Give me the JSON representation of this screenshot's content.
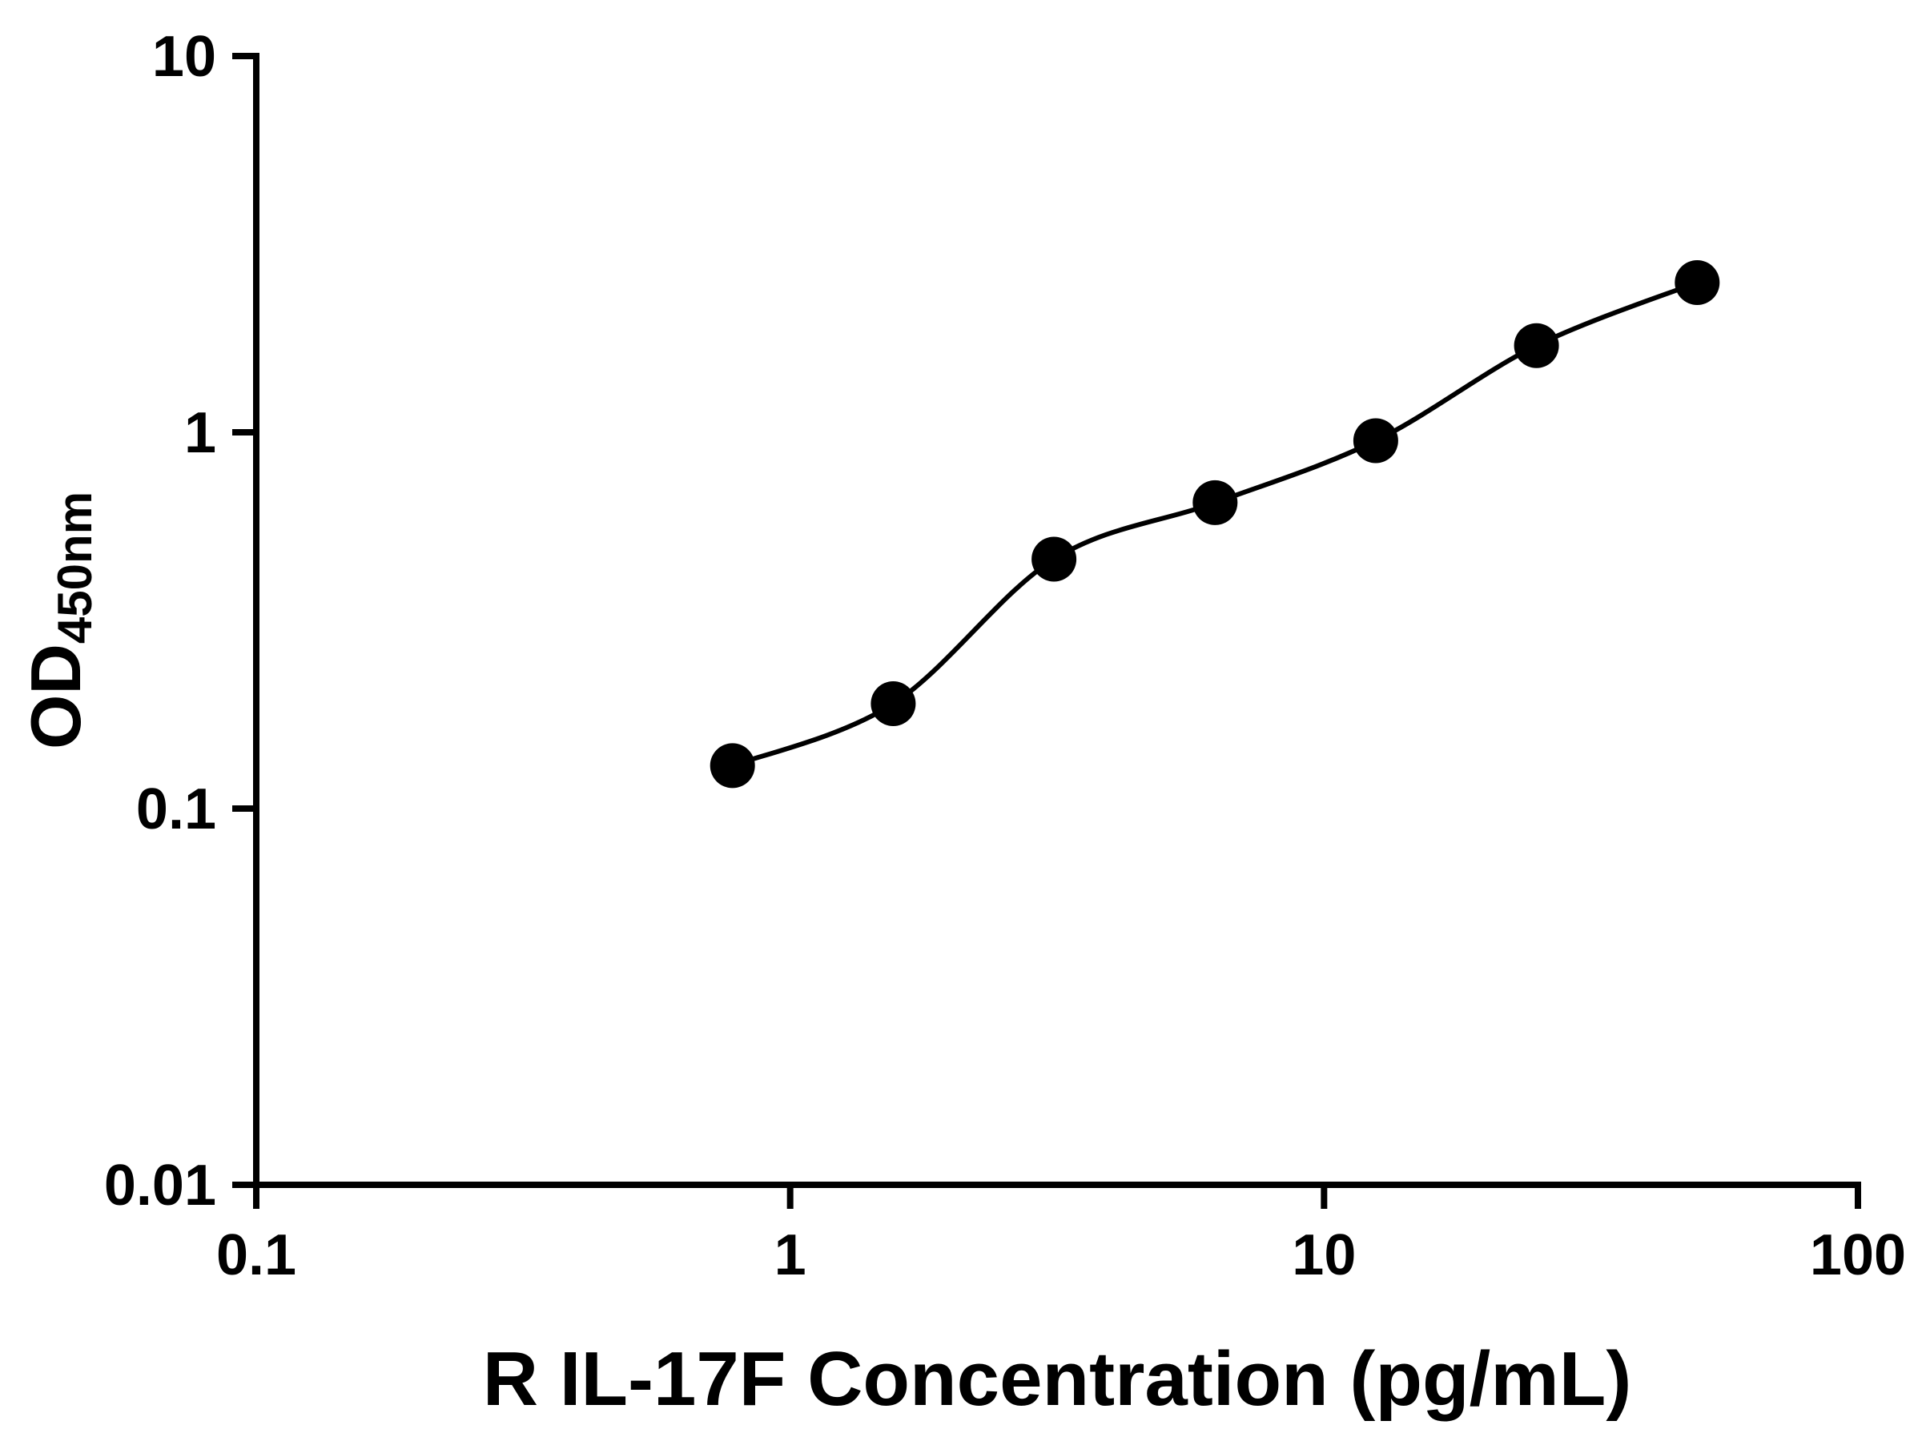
{
  "page": {
    "background_color": "#ffffff"
  },
  "chart_data": {
    "type": "scatter",
    "title": "",
    "xlabel": "R IL-17F Concentration (pg/mL)",
    "ylabel": "OD450nm",
    "ylabel_main": "OD",
    "ylabel_sub": "450nm",
    "x_scale": "log",
    "y_scale": "log",
    "xlim": [
      0.1,
      100
    ],
    "ylim": [
      0.01,
      10
    ],
    "x_tick_values": [
      0.1,
      1,
      10,
      100
    ],
    "x_tick_labels": [
      "0.1",
      "1",
      "10",
      "100"
    ],
    "y_tick_values": [
      0.01,
      0.1,
      1,
      10
    ],
    "y_tick_labels": [
      "0.01",
      "0.1",
      "1",
      "10"
    ],
    "grid": false,
    "legend": false,
    "marker": "filled-circle",
    "marker_color": "#000000",
    "line_color": "#000000",
    "axis_color": "#000000",
    "fit_curve": true,
    "series": [
      {
        "points": [
          {
            "x": 0.78,
            "y": 0.13
          },
          {
            "x": 1.56,
            "y": 0.19
          },
          {
            "x": 3.12,
            "y": 0.46
          },
          {
            "x": 6.25,
            "y": 0.65
          },
          {
            "x": 12.5,
            "y": 0.95
          },
          {
            "x": 25,
            "y": 1.7
          },
          {
            "x": 50,
            "y": 2.5
          }
        ]
      }
    ]
  }
}
